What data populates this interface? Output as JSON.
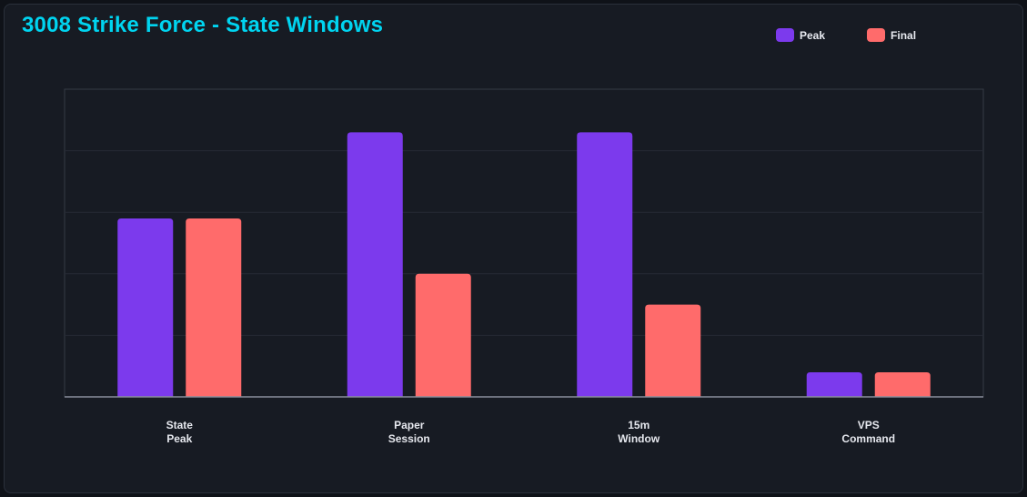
{
  "colors": {
    "peak": "#7c3aed",
    "final": "#ff6b6b",
    "title": "#00d4f0",
    "grid": "#262b35",
    "axis": "#8a909c",
    "plot_border": "#353b46"
  },
  "chart_data": {
    "type": "bar",
    "title": "3008 Strike Force - State Windows",
    "xlabel": "",
    "ylabel": "",
    "ylim": [
      0,
      5
    ],
    "grid": true,
    "legend_placement": "top-right",
    "categories": [
      [
        "State",
        "Peak"
      ],
      [
        "Paper",
        "Session"
      ],
      [
        "15m",
        "Window"
      ],
      [
        "VPS",
        "Command"
      ]
    ],
    "series": [
      {
        "name": "Peak",
        "color": "#7c3aed",
        "values": [
          2.9,
          4.3,
          4.3,
          0.4
        ]
      },
      {
        "name": "Final",
        "color": "#ff6b6b",
        "values": [
          2.9,
          2.0,
          1.5,
          0.4
        ]
      }
    ]
  }
}
